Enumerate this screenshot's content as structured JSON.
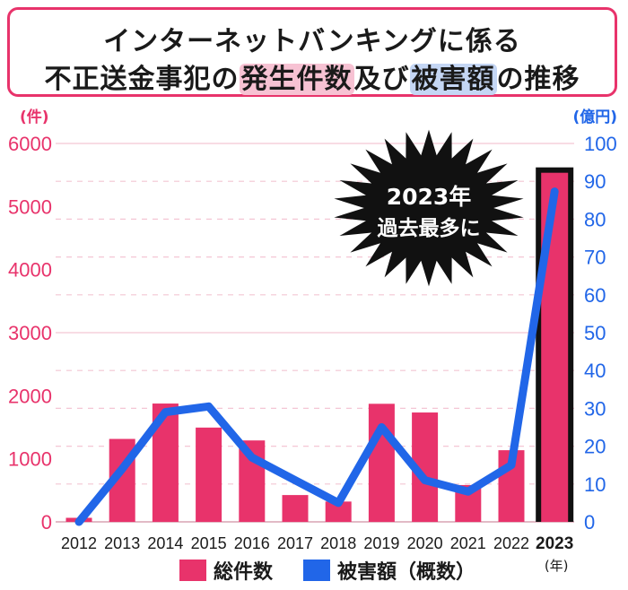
{
  "title": {
    "line1": "インターネットバンキングに係る",
    "line2_pre": "不正送金事犯の",
    "line2_hl1": "発生件数",
    "line2_mid": "及び",
    "line2_hl2": "被害額",
    "line2_post": "の推移"
  },
  "chart_data": {
    "type": "bar+line",
    "categories": [
      "2012",
      "2013",
      "2014",
      "2015",
      "2016",
      "2017",
      "2018",
      "2019",
      "2020",
      "2021",
      "2022",
      "2023"
    ],
    "series": [
      {
        "name": "総件数",
        "type": "bar",
        "axis": "left",
        "values": [
          64,
          1315,
          1876,
          1495,
          1291,
          425,
          322,
          1872,
          1734,
          584,
          1136,
          5578
        ]
      },
      {
        "name": "被害額（概数）",
        "type": "line",
        "axis": "right",
        "values": [
          0,
          14,
          29,
          30.5,
          17,
          11,
          5,
          25,
          11,
          8,
          15,
          87.3
        ]
      }
    ],
    "left_axis": {
      "unit": "(件)",
      "ticks": [
        0,
        1000,
        2000,
        3000,
        4000,
        5000,
        6000
      ],
      "range": [
        0,
        6000
      ]
    },
    "right_axis": {
      "unit": "(億円)",
      "ticks": [
        0,
        10,
        20,
        30,
        40,
        50,
        60,
        70,
        80,
        90,
        100
      ],
      "range": [
        0,
        100
      ]
    },
    "x_unit": "(年)",
    "highlight_category": "2023",
    "annotation": {
      "line1": "2023年",
      "line2": "過去最多に"
    },
    "colors": {
      "bar": "#e8336b",
      "line": "#2166e8",
      "left_axis": "#e8336b",
      "right_axis": "#2166e8",
      "grid": "#f4c6d4"
    }
  }
}
